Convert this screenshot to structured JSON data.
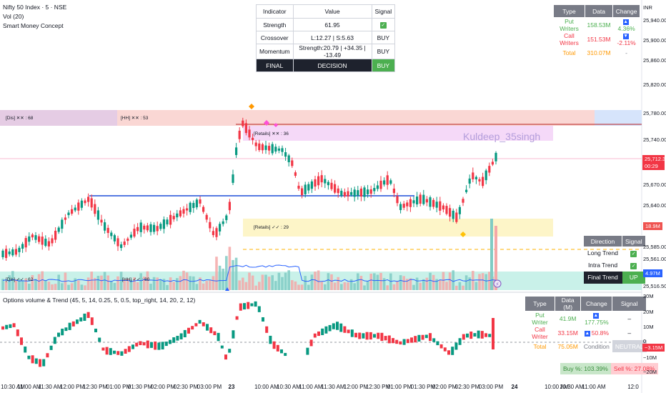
{
  "legend": {
    "symbol_line": "Nifty 50 Index · 5 · NSE",
    "volume_line": "Vol (20)",
    "smc_line": "Smart Money Concept"
  },
  "currency": "INR",
  "indicator_table": {
    "headers": [
      "Indicator",
      "Value",
      "Signal"
    ],
    "rows": [
      {
        "name": "Strength",
        "value": "61.95",
        "signal": "✓"
      },
      {
        "name": "Crossover",
        "value": "L:12.27 | S:5.63",
        "signal": "BUY"
      },
      {
        "name": "Momentum",
        "value": "Strength:20.79 | +34.35 | -13.49",
        "signal": "BUY"
      }
    ],
    "final": {
      "label": "FINAL",
      "value": "DECISION",
      "signal": "BUY"
    }
  },
  "oi_table": {
    "headers": [
      "Type",
      "Data",
      "Change"
    ],
    "rows": [
      {
        "type": "Put Writers",
        "data": "158.53M",
        "change": "4.36%",
        "arrow": "▲"
      },
      {
        "type": "Call Writers",
        "data": "151.53M",
        "change": "-2.11%",
        "arrow": "▼"
      },
      {
        "type": "Total",
        "data": "310.07M",
        "change": "-"
      }
    ]
  },
  "direction_table": {
    "headers": [
      "Direction",
      "Signal"
    ],
    "rows": [
      {
        "name": "Long Trend",
        "signal": "✓"
      },
      {
        "name": "Intra Trend",
        "signal": "✓"
      }
    ],
    "final": {
      "name": "Final Trend",
      "signal": "UP"
    }
  },
  "indicator_pane": {
    "title": "Options volume & Trend (45, 5, 14, 0.25, 5, 0.5, top_right, 14, 20, 2, 12)"
  },
  "volume_table": {
    "headers": [
      "Type",
      "Data (M)",
      "Change",
      "Signal"
    ],
    "rows": [
      {
        "type": "Put Writer",
        "data": "41.9M",
        "change": "177.75%",
        "arrow": "▲",
        "signal": "–"
      },
      {
        "type": "Call Writer",
        "data": "33.15M",
        "change": "50.8%",
        "arrow": "▲",
        "signal": "–"
      },
      {
        "type": "Total",
        "data": "75.05M",
        "change": "Condition",
        "signal": "NEUTRAL"
      }
    ],
    "buy_pct": "Buy %: 103.39%",
    "sell_pct": "Sell %: 27.08%"
  },
  "watermark": "Kuldeep_35singh",
  "zones": {
    "dis_top": "[Dis] ✕✕ : 68",
    "hh_top": "[HH] ✕✕ : 53",
    "retails_top": "[Retails] ✕✕ : 36",
    "retails_mid": "[Retails] ✓✓ : 29",
    "dis_bottom": "[Dis] ✓✓ : 62",
    "hh_bottom": "[HH] ✓✓ : 80"
  },
  "price_axis": {
    "ticks": [
      "25,940.00",
      "25,900.00",
      "25,860.00",
      "25,820.00",
      "25,780.00",
      "25,740.00",
      "25,670.00",
      "25,640.00",
      "25,585.00",
      "25,561.00",
      "25,516.50"
    ],
    "current_price": "25,712.30",
    "countdown": "00:29",
    "volume_tag": "18.9M",
    "vol_ma_tag": "4.97M",
    "partial_tick": "50"
  },
  "ind_axis": {
    "ticks": [
      "30M",
      "20M",
      "10M",
      "0",
      "−10M",
      "−20M"
    ],
    "current": "−3.15M"
  },
  "time_axis": {
    "labels": [
      "10:30 AM",
      "11:00 AM",
      "11:30 AM",
      "12:00 PM",
      "12:30 PM",
      "01:00 PM",
      "01:30 PM",
      "02:00 PM",
      "02:30 PM",
      "03:00 PM",
      "23",
      "10:00 AM",
      "10:30 AM",
      "11:00 AM",
      "11:30 AM",
      "12:00 PM",
      "12:30 PM",
      "01:00 PM",
      "01:30 PM",
      "02:00 PM",
      "02:30 PM",
      "03:00 PM",
      "24",
      "10:00 AM",
      "10:30 AM",
      "11:00 AM",
      "12:0"
    ]
  },
  "colors": {
    "up": "#089981",
    "down": "#f23645",
    "accent_blue": "#2962ff",
    "oi_header": "#787b86"
  }
}
